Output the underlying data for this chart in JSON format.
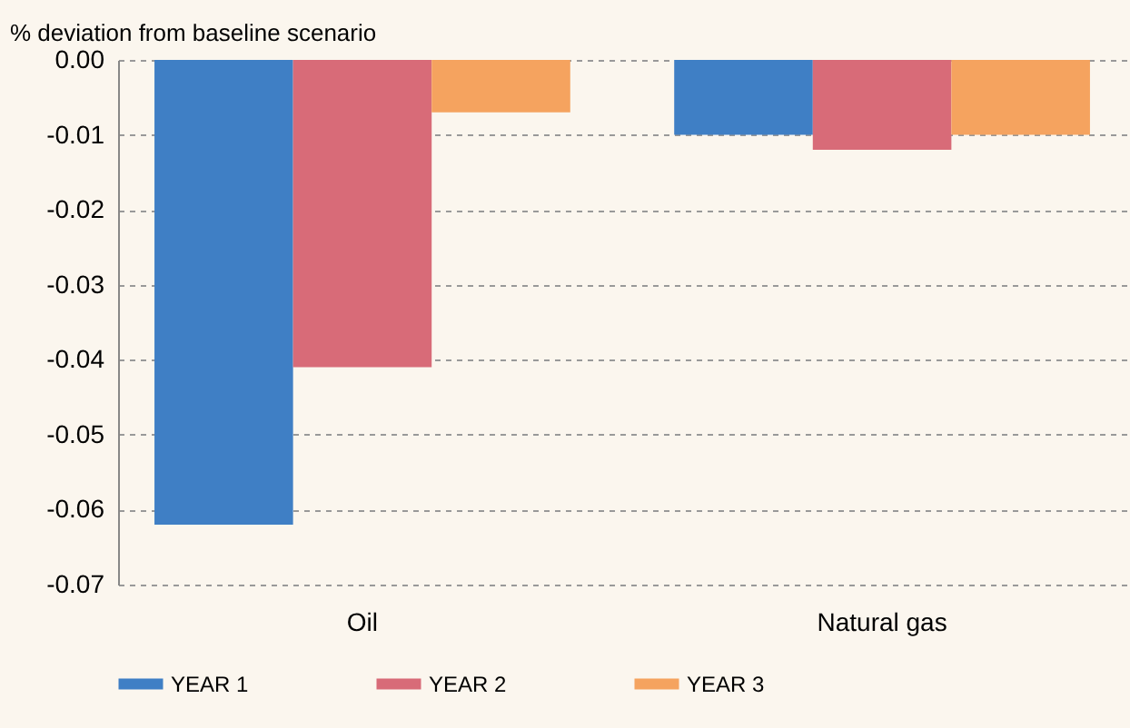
{
  "chart_data": {
    "type": "bar",
    "ylabel": "% deviation from baseline scenario",
    "categories": [
      "Oil",
      "Natural gas"
    ],
    "series": [
      {
        "name": "YEAR 1",
        "color": "#3f7fc5",
        "values": [
          -0.062,
          -0.01
        ]
      },
      {
        "name": "YEAR 2",
        "color": "#d86b78",
        "values": [
          -0.041,
          -0.012
        ]
      },
      {
        "name": "YEAR 3",
        "color": "#f5a35f",
        "values": [
          -0.007,
          -0.01
        ]
      }
    ],
    "ylim": [
      -0.07,
      0
    ],
    "yticks": [
      {
        "value": 0,
        "label": "0.00"
      },
      {
        "value": -0.01,
        "label": "-0.01"
      },
      {
        "value": -0.02,
        "label": "-0.02"
      },
      {
        "value": -0.03,
        "label": "-0.03"
      },
      {
        "value": -0.04,
        "label": "-0.04"
      },
      {
        "value": -0.05,
        "label": "-0.05"
      },
      {
        "value": -0.06,
        "label": "-0.06"
      },
      {
        "value": -0.07,
        "label": "-0.07"
      }
    ],
    "grid": "y",
    "legend": "bottom"
  }
}
